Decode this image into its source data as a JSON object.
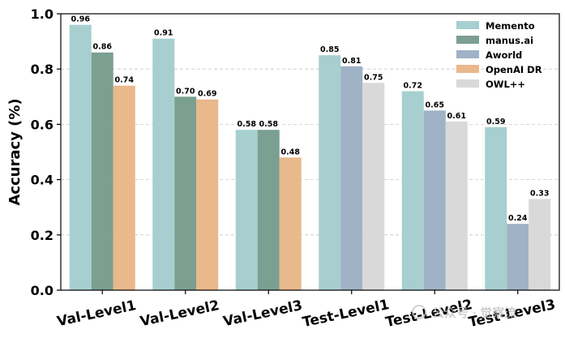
{
  "chart_data": {
    "type": "bar",
    "ylabel": "Accuracy (%)",
    "xlabel": "",
    "ylim": [
      0,
      1.0
    ],
    "yticks": [
      "0.0",
      "0.2",
      "0.4",
      "0.6",
      "0.8",
      "1.0"
    ],
    "grid": true,
    "legend_position": "top-right",
    "categories": [
      "Val-Level1",
      "Val-Level2",
      "Val-Level3",
      "Test-Level1",
      "Test-Level2",
      "Test-Level3"
    ],
    "series": [
      {
        "name": "Memento",
        "color": "#a7cfcf",
        "values": [
          0.96,
          0.91,
          0.58,
          0.85,
          0.72,
          0.59
        ]
      },
      {
        "name": "manus.ai",
        "color": "#7b9f91",
        "values": [
          0.86,
          0.7,
          0.58,
          null,
          null,
          null
        ]
      },
      {
        "name": "Aworld",
        "color": "#9fb2c6",
        "values": [
          null,
          null,
          null,
          0.81,
          0.65,
          0.24
        ]
      },
      {
        "name": "OpenAI DR",
        "color": "#e9b88b",
        "values": [
          0.74,
          0.69,
          0.48,
          null,
          null,
          null
        ]
      },
      {
        "name": "OWL++",
        "color": "#d9d9d9",
        "values": [
          null,
          null,
          null,
          0.75,
          0.61,
          0.33
        ]
      }
    ],
    "data_labels": true
  },
  "watermark": {
    "text": "公众号 · 觉察流"
  }
}
